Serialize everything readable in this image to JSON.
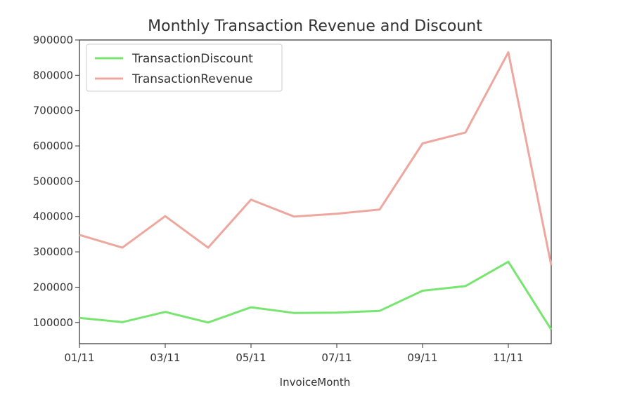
{
  "chart_data": {
    "type": "line",
    "title": "Monthly Transaction Revenue and Discount",
    "xlabel": "InvoiceMonth",
    "ylabel": "",
    "x": [
      "01/11",
      "02/11",
      "03/11",
      "04/11",
      "05/11",
      "06/11",
      "07/11",
      "08/11",
      "09/11",
      "10/11",
      "11/11",
      "12/11"
    ],
    "x_tick_labels": [
      "01/11",
      "03/11",
      "05/11",
      "07/11",
      "09/11",
      "11/11"
    ],
    "y_tick_labels": [
      "100000",
      "200000",
      "300000",
      "400000",
      "500000",
      "600000",
      "700000",
      "800000",
      "900000"
    ],
    "y_ticks": [
      100000,
      200000,
      300000,
      400000,
      500000,
      600000,
      700000,
      800000,
      900000
    ],
    "ylim": [
      40000,
      900000
    ],
    "grid": false,
    "legend": "top-left",
    "series": [
      {
        "name": "TransactionDiscount",
        "color": "#77e56f",
        "values": [
          113000,
          101000,
          130000,
          100000,
          143000,
          127000,
          128000,
          133000,
          190000,
          203000,
          272000,
          80000
        ]
      },
      {
        "name": "TransactionRevenue",
        "color": "#eea79f",
        "values": [
          348000,
          312000,
          401000,
          312000,
          448000,
          400000,
          408000,
          420000,
          607000,
          638000,
          865000,
          262000
        ]
      }
    ]
  }
}
